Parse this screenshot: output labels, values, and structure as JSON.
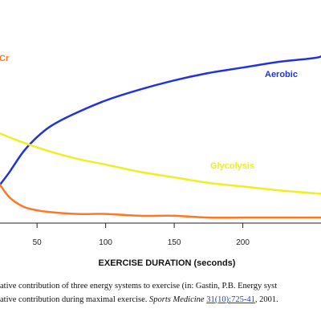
{
  "chart_data": {
    "type": "line",
    "title": "",
    "xlabel": "EXERCISE DURATION (seconds)",
    "ylabel": "",
    "x_ticks": [
      50,
      100,
      150,
      200
    ],
    "xlim": [
      23,
      257
    ],
    "ylim": [
      0,
      100
    ],
    "grid": false,
    "legend": "inline labels",
    "series": [
      {
        "name": "Aerobic",
        "color": "#2233dd",
        "x": [
          23,
          30,
          40,
          50,
          60,
          75,
          100,
          125,
          150,
          175,
          200,
          225,
          250,
          257
        ],
        "y": [
          21,
          28,
          39,
          47,
          53,
          59,
          67,
          73,
          78,
          82,
          85,
          88,
          90,
          91
        ]
      },
      {
        "name": "Glycolysis",
        "color": "#eeee22",
        "x": [
          23,
          40,
          60,
          80,
          100,
          125,
          150,
          175,
          200,
          225,
          257
        ],
        "y": [
          49,
          44,
          39,
          35,
          32,
          28,
          25,
          22,
          20,
          18,
          16
        ]
      },
      {
        "name": "ATP-PCr",
        "label_text": "Cr",
        "color": "#ff7722",
        "x": [
          23,
          30,
          40,
          50,
          60,
          80,
          100,
          125,
          150,
          175,
          200,
          225,
          257
        ],
        "y": [
          21,
          14,
          9,
          7,
          6,
          5,
          5,
          4,
          4,
          3,
          3,
          3,
          3
        ]
      }
    ]
  },
  "caption": {
    "line1": "ative contribution of three energy systems to exercise (in: Gastin, P.B. Energy syst",
    "line2_prefix": "ative contribution during maximal exercise.",
    "line2_journal": "Sports Medicine",
    "line2_link": "31(10):725-41",
    "line2_suffix": ", 2001."
  }
}
